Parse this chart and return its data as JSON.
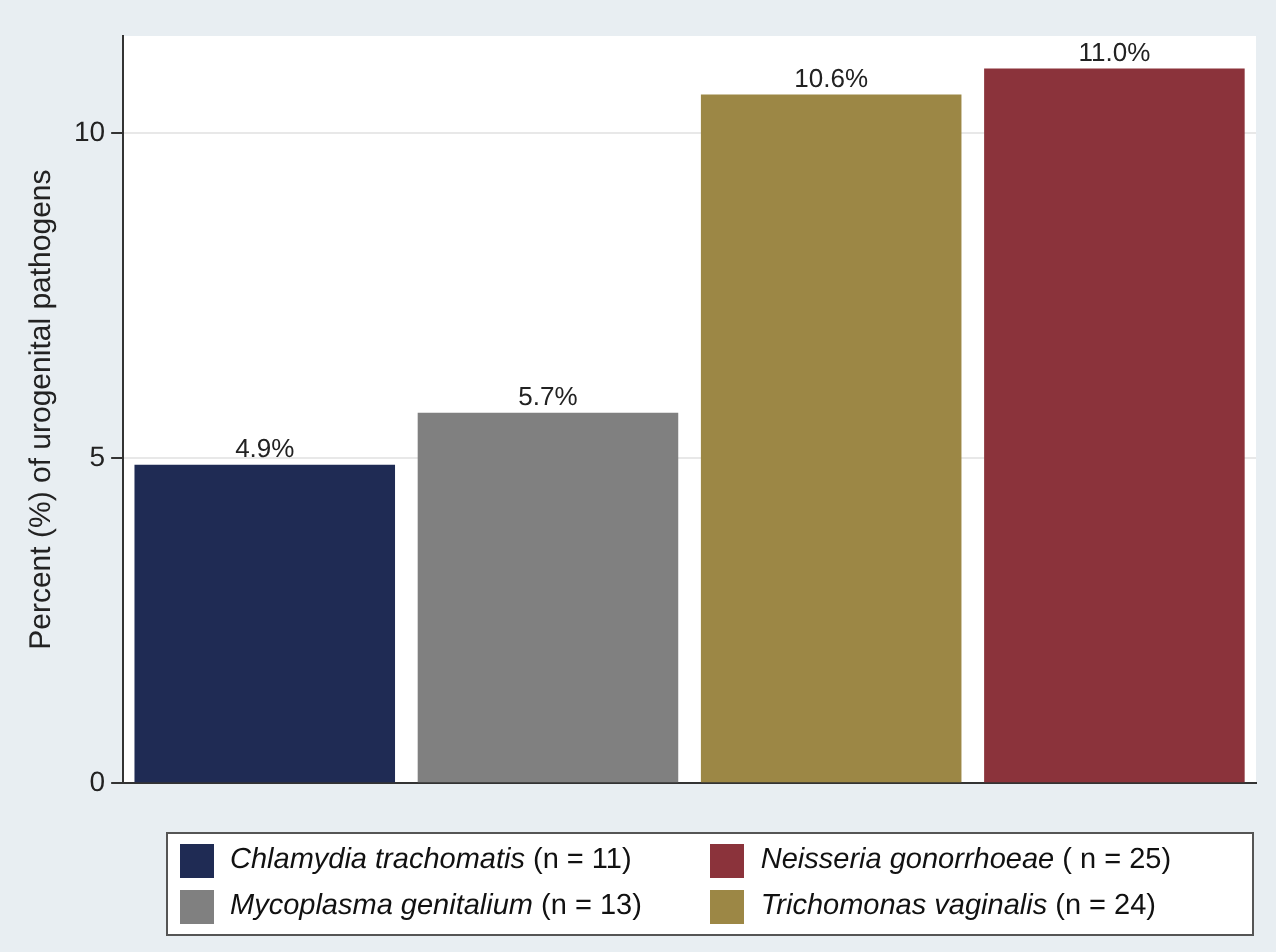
{
  "chart_data": {
    "type": "bar",
    "ylabel": "Percent (%) of urogenital pathogens",
    "categories": [
      null,
      null,
      null,
      null
    ],
    "series": [
      {
        "name": "Chlamydia trachomatis (n = 11)",
        "color": "#1f2b54",
        "values": [
          4.9,
          null,
          null,
          null
        ],
        "value_labels": [
          "4.9%",
          null,
          null,
          null
        ]
      },
      {
        "name": "Mycoplasma genitalium (n = 13)",
        "color": "#808080",
        "values": [
          null,
          5.7,
          null,
          null
        ],
        "value_labels": [
          null,
          "5.7%",
          null,
          null
        ]
      },
      {
        "name": "Neisseria gonorrhoeae ( n = 25)",
        "color": "#8b333b",
        "values": [
          null,
          null,
          null,
          11.0
        ],
        "value_labels": [
          null,
          null,
          null,
          "11.0%"
        ]
      },
      {
        "name": "Trichomonas vaginalis (n = 24)",
        "color": "#9c8745",
        "values": [
          null,
          null,
          10.6,
          null
        ],
        "value_labels": [
          null,
          null,
          "10.6%",
          null
        ]
      }
    ],
    "ylim": [
      0,
      11.5
    ],
    "yticks": [
      0,
      5,
      10
    ],
    "grid": "y",
    "legend": "bottom"
  }
}
